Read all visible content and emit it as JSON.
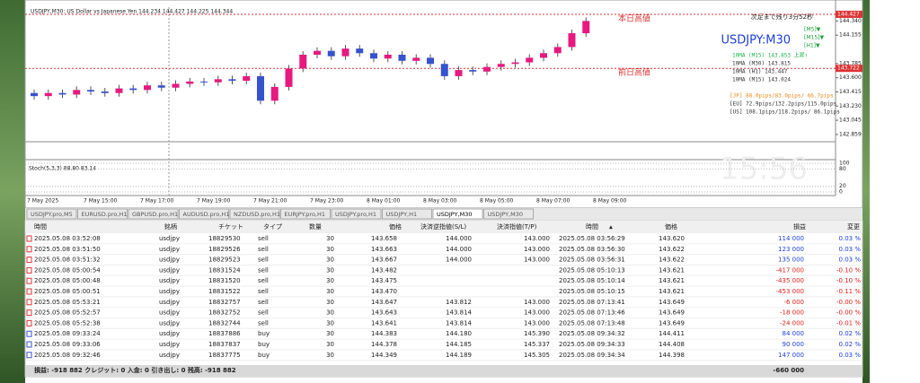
{
  "chart": {
    "symbol_line": "USDJPY,M30:  US Dollar vs Japanese Yen  144.234 144.427 144.225 144.344",
    "countdown": "次足まで残り3分52秒",
    "symbol": "USDJPY:M30",
    "tf_labels": [
      "[M5]▼",
      "[M15]▼",
      "[H1]▼"
    ],
    "levels": [
      {
        "label": "本日高値",
        "value": 144.427
      },
      {
        "label": "前日高値",
        "value": 143.722
      }
    ],
    "ma_lines": [
      "10MA (M15) 143.853  上昇↑",
      "10MA (M30) 143.815",
      "10MA (H1) 143.447",
      "10MA (M15) 143.024"
    ],
    "pips": [
      "[JP] 88.0pips/83.0pips/ 66.7pips",
      "[EU] 72.9pips/132.2pips/115.0pips",
      "[US] 108.1pips/118.2pips/ 86.1pips"
    ],
    "clock": "15:56",
    "stoch_label": "Stoch(5,3,3) 88.80 83.14",
    "ylim": [
      142.8,
      144.52
    ],
    "yticks": [
      144.427,
      {
        "value": 144.34,
        "label": "144.340"
      },
      144.155,
      143.785,
      {
        "value": 143.6,
        "label": "143.600"
      },
      143.415,
      {
        "value": 143.23,
        "label": "143.230"
      },
      143.045,
      142.859
    ],
    "stoch_ylim": [
      0,
      100
    ],
    "stoch_yticks": [
      100,
      80,
      20,
      0
    ],
    "times": [
      "7 May 2025",
      "7 May 15:00",
      "7 May 17:00",
      "7 May 19:00",
      "7 May 21:00",
      "7 May 23:00",
      "8 May 01:00",
      "8 May 03:00",
      "8 May 05:00",
      "8 May 07:00",
      "8 May 09:00"
    ],
    "candles": [
      {
        "o": 143.4,
        "c": 143.36
      },
      {
        "o": 143.36,
        "c": 143.4
      },
      {
        "o": 143.4,
        "c": 143.38
      },
      {
        "o": 143.38,
        "c": 143.44
      },
      {
        "o": 143.44,
        "c": 143.42
      },
      {
        "o": 143.42,
        "c": 143.4
      },
      {
        "o": 143.4,
        "c": 143.46
      },
      {
        "o": 143.46,
        "c": 143.44
      },
      {
        "o": 143.44,
        "c": 143.5
      },
      {
        "o": 143.5,
        "c": 143.47
      },
      {
        "o": 143.47,
        "c": 143.52
      },
      {
        "o": 143.52,
        "c": 143.55
      },
      {
        "o": 143.55,
        "c": 143.54
      },
      {
        "o": 143.54,
        "c": 143.58
      },
      {
        "o": 143.58,
        "c": 143.56
      },
      {
        "o": 143.56,
        "c": 143.62
      },
      {
        "o": 143.62,
        "c": 143.3
      },
      {
        "o": 143.3,
        "c": 143.48
      },
      {
        "o": 143.48,
        "c": 143.72
      },
      {
        "o": 143.72,
        "c": 143.9
      },
      {
        "o": 143.9,
        "c": 143.95
      },
      {
        "o": 143.95,
        "c": 143.88
      },
      {
        "o": 143.88,
        "c": 143.98
      },
      {
        "o": 143.98,
        "c": 143.92
      },
      {
        "o": 143.92,
        "c": 143.85
      },
      {
        "o": 143.85,
        "c": 143.9
      },
      {
        "o": 143.9,
        "c": 143.82
      },
      {
        "o": 143.82,
        "c": 143.86
      },
      {
        "o": 143.86,
        "c": 143.78
      },
      {
        "o": 143.78,
        "c": 143.62
      },
      {
        "o": 143.62,
        "c": 143.7
      },
      {
        "o": 143.7,
        "c": 143.68
      },
      {
        "o": 143.68,
        "c": 143.74
      },
      {
        "o": 143.74,
        "c": 143.78
      },
      {
        "o": 143.78,
        "c": 143.8
      },
      {
        "o": 143.8,
        "c": 143.86
      },
      {
        "o": 143.86,
        "c": 143.92
      },
      {
        "o": 143.92,
        "c": 144.0
      },
      {
        "o": 144.0,
        "c": 144.18
      },
      {
        "o": 144.18,
        "c": 144.34
      }
    ]
  },
  "tabs": [
    "USDJPY.pro,M5",
    "EURUSD.pro,H1",
    "GBPUSD.pro,H1",
    "AUDUSD.pro,H1",
    "NZDUSD.pro,H1",
    "EURJPY.pro,H1",
    "USDJPY.pro,H1",
    "USDJPY,H1",
    "USDJPY,M30",
    "USDJPY,M30"
  ],
  "active_tab": 8,
  "table": {
    "headers": [
      "時間",
      "銘柄",
      "チケット",
      "タイプ",
      "数量",
      "価格",
      "決済逆指値(S/L)",
      "決済指値(T/P)",
      "時間",
      "価格",
      "損益",
      "変更"
    ],
    "rows": [
      [
        "2025.05.08 03:52:08",
        "usdjpy",
        "18829530",
        "sell",
        "30",
        "143.658",
        "144.000",
        "143.000",
        "2025.05.08 03:56:29",
        "143.620",
        "114 000",
        "0.03 %"
      ],
      [
        "2025.05.08 03:51:50",
        "usdjpy",
        "18829526",
        "sell",
        "30",
        "143.663",
        "144.000",
        "143.000",
        "2025.05.08 03:56:30",
        "143.622",
        "123 000",
        "0.03 %"
      ],
      [
        "2025.05.08 03:51:32",
        "usdjpy",
        "18829523",
        "sell",
        "30",
        "143.667",
        "144.000",
        "143.000",
        "2025.05.08 03:56:31",
        "143.622",
        "135 000",
        "0.03 %"
      ],
      [
        "2025.05.08 05:00:54",
        "usdjpy",
        "18831524",
        "sell",
        "30",
        "143.482",
        null,
        null,
        "2025.05.08 05:10:13",
        "143.621",
        "-417 000",
        "-0.10 %"
      ],
      [
        "2025.05.08 05:00:48",
        "usdjpy",
        "18831520",
        "sell",
        "30",
        "143.475",
        null,
        null,
        "2025.05.08 05:10:14",
        "143.621",
        "-435 000",
        "-0.10 %"
      ],
      [
        "2025.05.08 05:00:51",
        "usdjpy",
        "18831522",
        "sell",
        "30",
        "143.470",
        null,
        null,
        "2025.05.08 05:10:15",
        "143.621",
        "-453 000",
        "-0.11 %"
      ],
      [
        "2025.05.08 05:53:21",
        "usdjpy",
        "18832757",
        "sell",
        "30",
        "143.647",
        "143.812",
        "143.000",
        "2025.05.08 07:13:41",
        "143.649",
        "-6 000",
        "-0.00 %"
      ],
      [
        "2025.05.08 05:52:57",
        "usdjpy",
        "18832752",
        "sell",
        "30",
        "143.643",
        "143.814",
        "143.000",
        "2025.05.08 07:13:46",
        "143.649",
        "-18 000",
        "-0.00 %"
      ],
      [
        "2025.05.08 05:52:38",
        "usdjpy",
        "18832744",
        "sell",
        "30",
        "143.641",
        "143.814",
        "143.000",
        "2025.05.08 07:13:48",
        "143.649",
        "-24 000",
        "-0.01 %"
      ],
      [
        "2025.05.08 09:33:24",
        "usdjpy",
        "18837886",
        "buy",
        "30",
        "144.383",
        "144.180",
        "145.390",
        "2025.05.08 09:34:32",
        "144.411",
        "84 000",
        "0.02 %"
      ],
      [
        "2025.05.08 09:33:06",
        "usdjpy",
        "18837837",
        "buy",
        "30",
        "144.378",
        "144.185",
        "145.337",
        "2025.05.08 09:34:33",
        "144.408",
        "90 000",
        "0.02 %"
      ],
      [
        "2025.05.08 09:32:46",
        "usdjpy",
        "18837775",
        "buy",
        "30",
        "144.349",
        "144.189",
        "145.305",
        "2025.05.08 09:34:34",
        "144.398",
        "147 000",
        "0.03 %"
      ]
    ],
    "summary": "損益: -918 882  クレジット: 0  入金: 0  引き出し: 0  残高: -918 882",
    "total": "-660 000"
  }
}
